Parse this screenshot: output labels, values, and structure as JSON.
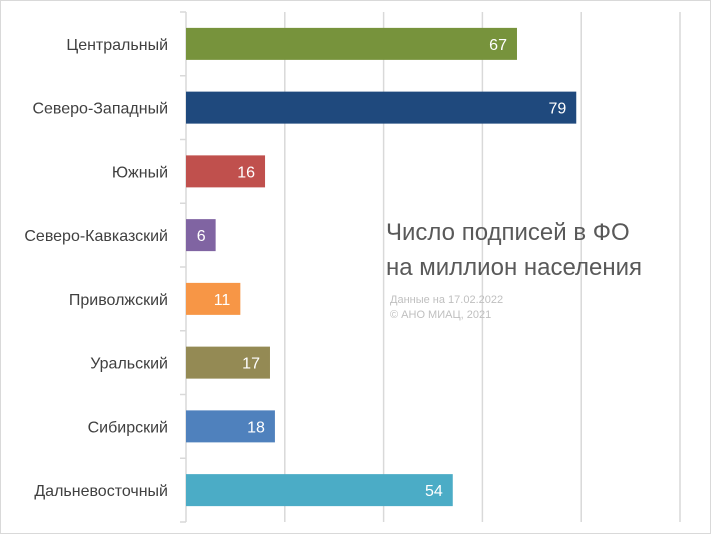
{
  "chart_data": {
    "type": "bar",
    "orientation": "horizontal",
    "title_lines": [
      "Число подписей в ФО",
      "на миллион населения"
    ],
    "note_lines": [
      "Данные на 17.02.2022",
      "© АНО МИАЦ, 2021"
    ],
    "categories": [
      "Центральный",
      "Северо-Западный",
      "Южный",
      "Северо-Кавказский",
      "Приволжский",
      "Уральский",
      "Сибирский",
      "Дальневосточный"
    ],
    "values": [
      67,
      79,
      16,
      6,
      11,
      17,
      18,
      54
    ],
    "colors": [
      "#77933c",
      "#1f497d",
      "#c0504d",
      "#8064a2",
      "#f79646",
      "#948a54",
      "#4f81bd",
      "#4bacc6"
    ],
    "xlim": [
      0,
      100
    ],
    "x_gridlines": [
      0,
      20,
      40,
      60,
      80,
      100
    ],
    "grid": true,
    "data_labels": true
  }
}
